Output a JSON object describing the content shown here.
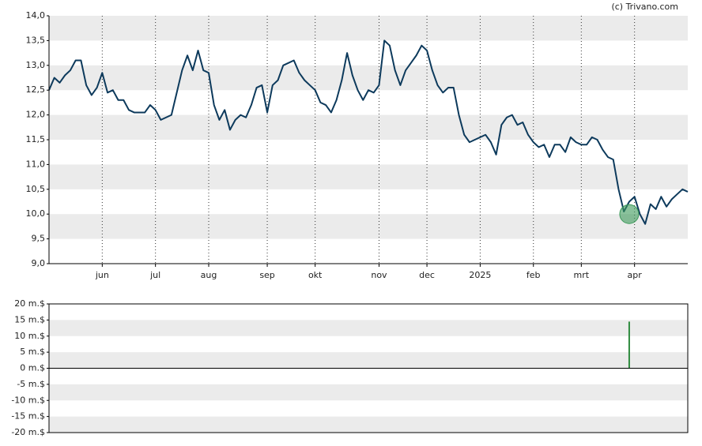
{
  "source": "(c) Trivano.com",
  "chart_data": [
    {
      "type": "line",
      "categories": [
        null,
        null,
        null,
        null,
        null,
        null,
        null,
        null,
        null,
        null,
        "jun",
        null,
        null,
        null,
        null,
        null,
        null,
        null,
        null,
        null,
        "jul",
        null,
        null,
        null,
        null,
        null,
        null,
        null,
        null,
        null,
        "aug",
        null,
        null,
        null,
        null,
        null,
        null,
        null,
        null,
        null,
        null,
        "sep",
        null,
        null,
        null,
        null,
        null,
        null,
        null,
        null,
        "okt",
        null,
        null,
        null,
        null,
        null,
        null,
        null,
        null,
        null,
        null,
        null,
        "nov",
        null,
        null,
        null,
        null,
        null,
        null,
        null,
        null,
        "dec",
        null,
        null,
        null,
        null,
        null,
        null,
        null,
        null,
        null,
        "2025",
        null,
        null,
        null,
        null,
        null,
        null,
        null,
        null,
        null,
        "feb",
        null,
        null,
        null,
        null,
        null,
        null,
        null,
        null,
        "mrt",
        null,
        null,
        null,
        null,
        null,
        null,
        null,
        null,
        null,
        "apr",
        null,
        null,
        null,
        null,
        null,
        null,
        null,
        null,
        null,
        null
      ],
      "series": [
        {
          "color": "#0d3a5c",
          "values": [
            12.5,
            12.75,
            12.65,
            12.8,
            12.9,
            13.1,
            13.1,
            12.6,
            12.4,
            12.55,
            12.85,
            12.45,
            12.5,
            12.3,
            12.3,
            12.1,
            12.05,
            12.05,
            12.05,
            12.2,
            12.1,
            11.9,
            11.95,
            12.0,
            12.45,
            12.9,
            13.2,
            12.9,
            13.3,
            12.9,
            12.85,
            12.2,
            11.9,
            12.1,
            11.7,
            11.9,
            12.0,
            11.95,
            12.2,
            12.55,
            12.6,
            12.05,
            12.6,
            12.7,
            13.0,
            13.05,
            13.1,
            12.85,
            12.7,
            12.6,
            12.5,
            12.25,
            12.2,
            12.05,
            12.3,
            12.7,
            13.25,
            12.8,
            12.5,
            12.3,
            12.5,
            12.45,
            12.6,
            13.5,
            13.4,
            12.9,
            12.6,
            12.9,
            13.05,
            13.2,
            13.4,
            13.3,
            12.9,
            12.6,
            12.45,
            12.55,
            12.55,
            12.0,
            11.6,
            11.45,
            11.5,
            11.55,
            11.6,
            11.45,
            11.2,
            11.8,
            11.95,
            12.0,
            11.8,
            11.85,
            11.6,
            11.45,
            11.35,
            11.4,
            11.15,
            11.4,
            11.4,
            11.25,
            11.55,
            11.45,
            11.4,
            11.4,
            11.55,
            11.5,
            11.3,
            11.15,
            11.1,
            10.5,
            10.05,
            10.25,
            10.35,
            10.0,
            9.8,
            10.2,
            10.1,
            10.35,
            10.15,
            10.3,
            10.4,
            10.5,
            10.45
          ]
        }
      ],
      "highlight_value": 10.0,
      "highlight_color": "#3c9a5a",
      "ylim": [
        9,
        14
      ],
      "yticks": [
        {
          "value": 9,
          "label": "9,0"
        },
        {
          "value": 9.5,
          "label": "9,5"
        },
        {
          "value": 10,
          "label": "10,0"
        },
        {
          "value": 10.5,
          "label": "10,5"
        },
        {
          "value": 11,
          "label": "11,0"
        },
        {
          "value": 11.5,
          "label": "11,5"
        },
        {
          "value": 12,
          "label": "12,0"
        },
        {
          "value": 12.5,
          "label": "12,5"
        },
        {
          "value": 13,
          "label": "13,0"
        },
        {
          "value": 13.5,
          "label": "13,5"
        },
        {
          "value": 14,
          "label": "14,0"
        }
      ],
      "grid": true
    },
    {
      "type": "bar",
      "color": "#2e8b3e",
      "values": [
        null,
        null,
        null,
        null,
        null,
        null,
        null,
        null,
        null,
        null,
        null,
        null,
        null,
        null,
        null,
        null,
        null,
        null,
        null,
        null,
        null,
        null,
        null,
        null,
        null,
        null,
        null,
        null,
        null,
        null,
        null,
        null,
        null,
        null,
        null,
        null,
        null,
        null,
        null,
        null,
        null,
        null,
        null,
        null,
        null,
        null,
        null,
        null,
        null,
        null,
        null,
        null,
        null,
        null,
        null,
        null,
        null,
        null,
        null,
        null,
        null,
        null,
        null,
        null,
        null,
        null,
        null,
        null,
        null,
        null,
        null,
        null,
        null,
        null,
        null,
        null,
        null,
        null,
        null,
        null,
        null,
        null,
        null,
        null,
        null,
        null,
        null,
        null,
        null,
        null,
        null,
        null,
        null,
        null,
        null,
        null,
        null,
        null,
        null,
        null,
        null,
        null,
        null,
        null,
        null,
        null,
        null,
        null,
        null,
        14.5,
        null,
        null,
        null,
        null,
        null,
        null,
        null,
        null,
        null,
        null,
        null
      ],
      "ylim": [
        -20,
        20
      ],
      "yticks": [
        {
          "value": -20,
          "label": "-20 m.$"
        },
        {
          "value": -15,
          "label": "-15 m.$"
        },
        {
          "value": -10,
          "label": "-10 m.$"
        },
        {
          "value": -5,
          "label": "-5 m.$"
        },
        {
          "value": 0,
          "label": "0 m.$"
        },
        {
          "value": 5,
          "label": "5 m.$"
        },
        {
          "value": 10,
          "label": "10 m.$"
        },
        {
          "value": 15,
          "label": "15 m.$"
        },
        {
          "value": 20,
          "label": "20 m.$"
        }
      ],
      "grid": true
    }
  ]
}
